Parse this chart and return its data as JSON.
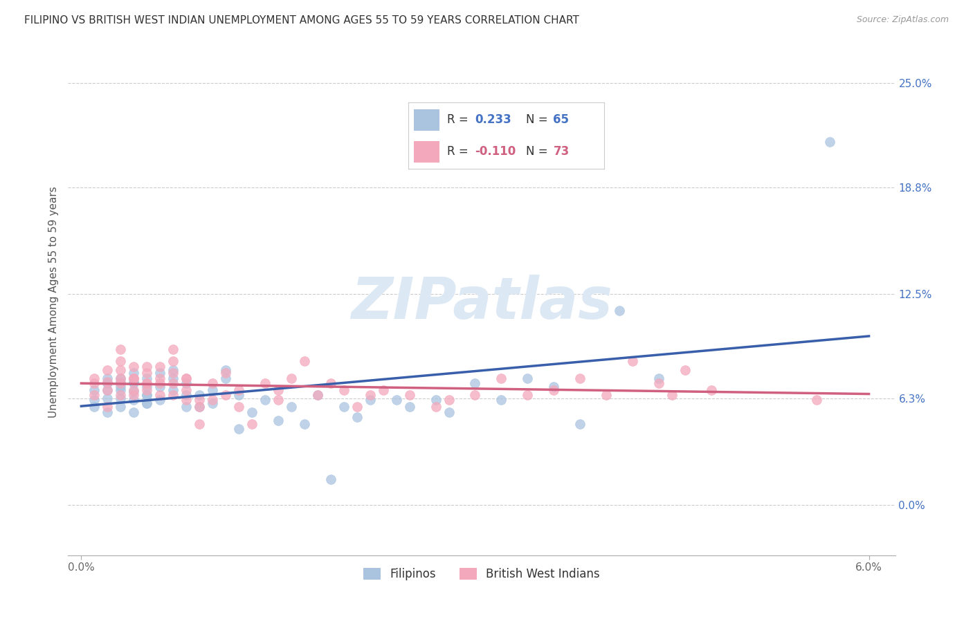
{
  "title": "FILIPINO VS BRITISH WEST INDIAN UNEMPLOYMENT AMONG AGES 55 TO 59 YEARS CORRELATION CHART",
  "source": "Source: ZipAtlas.com",
  "ylabel": "Unemployment Among Ages 55 to 59 years",
  "xlim": [
    0.0,
    0.06
  ],
  "ylim": [
    0.0,
    0.27
  ],
  "xtick_positions": [
    0.0,
    0.06
  ],
  "xticklabels": [
    "0.0%",
    "6.0%"
  ],
  "right_ytick_positions": [
    0.0,
    0.063,
    0.125,
    0.188,
    0.25
  ],
  "right_ytick_labels": [
    "0.0%",
    "6.3%",
    "12.5%",
    "18.8%",
    "25.0%"
  ],
  "grid_yticks": [
    0.0,
    0.063,
    0.125,
    0.188,
    0.25
  ],
  "filipino_R": 0.233,
  "filipino_N": 65,
  "bwi_R": -0.11,
  "bwi_N": 73,
  "filipino_color": "#aac4e0",
  "bwi_color": "#f4a8bc",
  "filipino_line_color": "#3a5faa",
  "bwi_line_color": "#d06080",
  "watermark_text": "ZIPatlas",
  "legend_filip_R": "0.233",
  "legend_filip_N": "65",
  "legend_bwi_R": "-0.110",
  "legend_bwi_N": "73",
  "filipino_x": [
    0.001,
    0.001,
    0.001,
    0.002,
    0.002,
    0.002,
    0.002,
    0.002,
    0.003,
    0.003,
    0.003,
    0.003,
    0.003,
    0.003,
    0.004,
    0.004,
    0.004,
    0.004,
    0.004,
    0.004,
    0.005,
    0.005,
    0.005,
    0.005,
    0.005,
    0.005,
    0.006,
    0.006,
    0.006,
    0.007,
    0.007,
    0.007,
    0.008,
    0.008,
    0.008,
    0.009,
    0.009,
    0.01,
    0.01,
    0.011,
    0.011,
    0.012,
    0.012,
    0.013,
    0.014,
    0.015,
    0.016,
    0.017,
    0.018,
    0.019,
    0.02,
    0.021,
    0.022,
    0.024,
    0.025,
    0.027,
    0.028,
    0.03,
    0.032,
    0.034,
    0.036,
    0.038,
    0.041,
    0.044,
    0.057
  ],
  "filipino_y": [
    0.058,
    0.062,
    0.068,
    0.055,
    0.063,
    0.068,
    0.075,
    0.072,
    0.058,
    0.063,
    0.068,
    0.073,
    0.075,
    0.07,
    0.055,
    0.062,
    0.067,
    0.073,
    0.078,
    0.072,
    0.06,
    0.065,
    0.07,
    0.075,
    0.06,
    0.065,
    0.07,
    0.078,
    0.062,
    0.068,
    0.075,
    0.08,
    0.058,
    0.065,
    0.072,
    0.058,
    0.065,
    0.06,
    0.068,
    0.075,
    0.08,
    0.045,
    0.065,
    0.055,
    0.062,
    0.05,
    0.058,
    0.048,
    0.065,
    0.015,
    0.058,
    0.052,
    0.062,
    0.062,
    0.058,
    0.062,
    0.055,
    0.072,
    0.062,
    0.075,
    0.07,
    0.048,
    0.115,
    0.075,
    0.215
  ],
  "bwi_x": [
    0.001,
    0.001,
    0.001,
    0.002,
    0.002,
    0.002,
    0.002,
    0.003,
    0.003,
    0.003,
    0.003,
    0.003,
    0.003,
    0.004,
    0.004,
    0.004,
    0.004,
    0.004,
    0.004,
    0.005,
    0.005,
    0.005,
    0.005,
    0.005,
    0.006,
    0.006,
    0.006,
    0.006,
    0.007,
    0.007,
    0.007,
    0.007,
    0.007,
    0.008,
    0.008,
    0.008,
    0.008,
    0.009,
    0.009,
    0.009,
    0.01,
    0.01,
    0.011,
    0.011,
    0.012,
    0.012,
    0.013,
    0.014,
    0.015,
    0.015,
    0.016,
    0.017,
    0.018,
    0.019,
    0.02,
    0.021,
    0.022,
    0.023,
    0.025,
    0.027,
    0.028,
    0.03,
    0.032,
    0.034,
    0.036,
    0.038,
    0.04,
    0.042,
    0.044,
    0.045,
    0.046,
    0.048,
    0.056
  ],
  "bwi_y": [
    0.065,
    0.072,
    0.075,
    0.058,
    0.068,
    0.073,
    0.08,
    0.065,
    0.072,
    0.08,
    0.075,
    0.085,
    0.092,
    0.068,
    0.075,
    0.082,
    0.075,
    0.065,
    0.075,
    0.072,
    0.078,
    0.068,
    0.072,
    0.082,
    0.075,
    0.082,
    0.072,
    0.065,
    0.078,
    0.085,
    0.072,
    0.065,
    0.092,
    0.075,
    0.068,
    0.062,
    0.075,
    0.058,
    0.048,
    0.062,
    0.062,
    0.072,
    0.078,
    0.065,
    0.068,
    0.058,
    0.048,
    0.072,
    0.068,
    0.062,
    0.075,
    0.085,
    0.065,
    0.072,
    0.068,
    0.058,
    0.065,
    0.068,
    0.065,
    0.058,
    0.062,
    0.065,
    0.075,
    0.065,
    0.068,
    0.075,
    0.065,
    0.085,
    0.072,
    0.065,
    0.08,
    0.068,
    0.062
  ]
}
